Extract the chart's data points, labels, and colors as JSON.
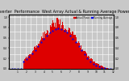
{
  "title": "Solar PV/Inverter  Performance  West Array Actual & Running Average Power Output",
  "title_fontsize": 3.5,
  "bg_color": "#c8c8c8",
  "plot_bg_color": "#c8c8c8",
  "bar_color": "#dd0000",
  "avg_color": "#0000ee",
  "grid_color": "#ffffff",
  "legend_actual": "Actual Power",
  "legend_avg": "Running Average",
  "n_bars": 144,
  "ylim": [
    0,
    1.05
  ],
  "ylabel_right": "kW"
}
